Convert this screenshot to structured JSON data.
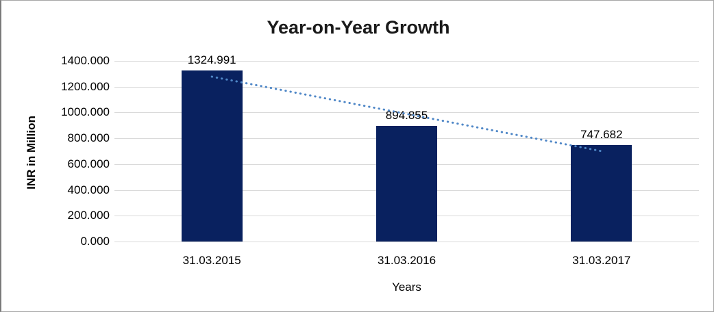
{
  "chart_data": {
    "type": "bar",
    "title": "Year-on-Year Growth",
    "xlabel": "Years",
    "ylabel": "INR in Million",
    "categories": [
      "31.03.2015",
      "31.03.2016",
      "31.03.2017"
    ],
    "values": [
      1324.991,
      894.855,
      747.682
    ],
    "value_labels": [
      "1324.991",
      "894.855",
      "747.682"
    ],
    "ylim": [
      0,
      1400
    ],
    "ytick_step": 200,
    "ytick_labels": [
      "1400.000",
      "1200.000",
      "1000.000",
      "800.000",
      "600.000",
      "400.000",
      "200.000",
      "0.000"
    ],
    "grid": "horizontal",
    "legend": "none",
    "colors": {
      "bar": "#09215f",
      "trendline": "#4f87c7",
      "gridline": "#d9d9d9",
      "text": "#000000",
      "title": "#1a1a1a",
      "frame_border": "#a6a6a6"
    },
    "trendline": {
      "type": "linear",
      "style": "dotted",
      "start_value": 1277.8,
      "end_value": 700.5
    }
  }
}
